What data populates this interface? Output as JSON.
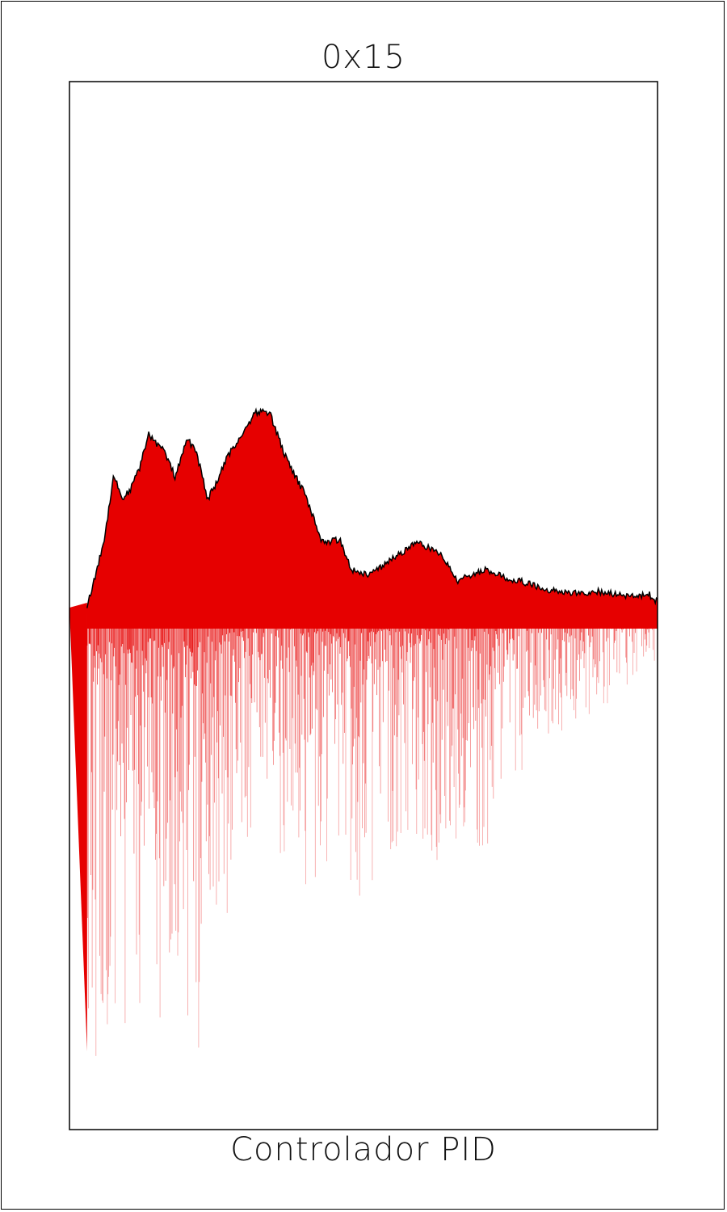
{
  "title": "0x15",
  "caption": "Controlador PID",
  "chart_data": {
    "type": "area",
    "fill_color": "#e60000",
    "upper_envelope": {
      "x": [
        0,
        0.03,
        0.04,
        0.06,
        0.075,
        0.09,
        0.105,
        0.12,
        0.135,
        0.15,
        0.16,
        0.18,
        0.2,
        0.215,
        0.235,
        0.25,
        0.27,
        0.3,
        0.315,
        0.34,
        0.37,
        0.4,
        0.43,
        0.46,
        0.48,
        0.51,
        0.55,
        0.59,
        0.63,
        0.66,
        0.68,
        0.71,
        0.74,
        0.78,
        0.8,
        0.84,
        0.87,
        0.9,
        0.93,
        0.96,
        0.985,
        1.0
      ],
      "y": [
        0.0,
        0.005,
        0.04,
        0.13,
        0.245,
        0.2,
        0.22,
        0.26,
        0.32,
        0.3,
        0.29,
        0.24,
        0.31,
        0.29,
        0.2,
        0.23,
        0.28,
        0.33,
        0.36,
        0.36,
        0.27,
        0.21,
        0.12,
        0.125,
        0.07,
        0.06,
        0.09,
        0.12,
        0.1,
        0.05,
        0.06,
        0.07,
        0.055,
        0.045,
        0.035,
        0.03,
        0.025,
        0.03,
        0.025,
        0.02,
        0.025,
        0.01
      ]
    },
    "lower_envelope": {
      "x": [
        0,
        0.03,
        0.05,
        0.08,
        0.1,
        0.13,
        0.16,
        0.19,
        0.21,
        0.23,
        0.26,
        0.29,
        0.32,
        0.35,
        0.38,
        0.41,
        0.45,
        0.5,
        0.54,
        0.58,
        0.62,
        0.66,
        0.7,
        0.75,
        0.8,
        0.85,
        0.9,
        0.95,
        1.0
      ],
      "y": [
        0.0,
        -0.85,
        -0.9,
        -0.75,
        -0.95,
        -0.7,
        -0.85,
        -0.75,
        -1.0,
        -0.7,
        -0.65,
        -0.55,
        -0.4,
        -0.5,
        -0.45,
        -0.6,
        -0.45,
        -0.6,
        -0.5,
        -0.45,
        -0.55,
        -0.45,
        -0.5,
        -0.35,
        -0.3,
        -0.25,
        -0.2,
        -0.15,
        -0.1
      ]
    },
    "ylim": [
      -1.0,
      1.0
    ],
    "grid": false
  }
}
